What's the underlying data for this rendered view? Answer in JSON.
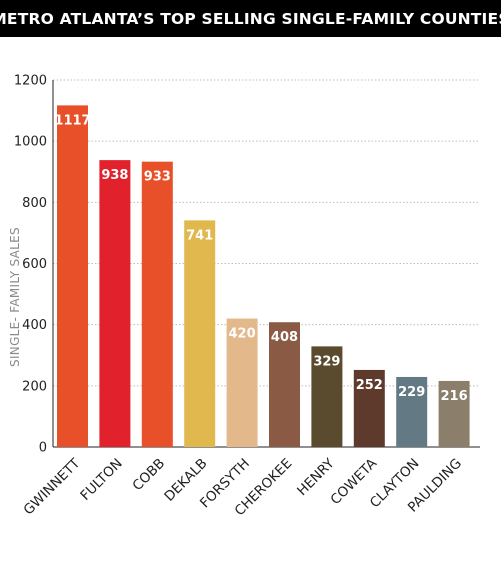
{
  "chart_data": {
    "type": "bar",
    "title": "METRO ATLANTA’S TOP SELLING SINGLE-FAMILY COUNTIES",
    "xlabel": "",
    "ylabel": "SINGLE- FAMILY SALES",
    "categories": [
      "GWINNETT",
      "FULTON",
      "COBB",
      "DEKALB",
      "FORSYTH",
      "CHEROKEE",
      "HENRY",
      "COWETA",
      "CLAYTON",
      "PAULDING"
    ],
    "values": [
      1117,
      938,
      933,
      741,
      420,
      408,
      329,
      252,
      229,
      216
    ],
    "value_labels": [
      "1117",
      "938",
      "933",
      "741",
      "420",
      "408",
      "329",
      "252",
      "229",
      "216"
    ],
    "colors": [
      "#e8502a",
      "#e1212b",
      "#e8502a",
      "#e1b84e",
      "#e3b88a",
      "#8b5a45",
      "#5a4a2e",
      "#5e3a2c",
      "#637a85",
      "#8b7e6b"
    ],
    "ylim": [
      0,
      1200
    ],
    "yticks": [
      "0",
      "200",
      "400",
      "600",
      "800",
      "1000",
      "1200"
    ],
    "grid": true
  }
}
